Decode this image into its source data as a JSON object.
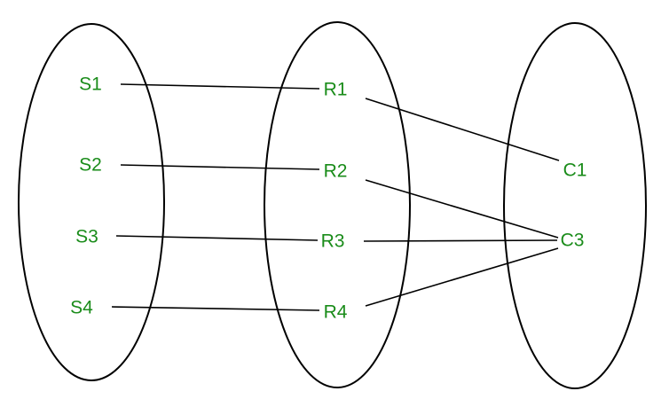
{
  "colors": {
    "label": "#1a8c1a",
    "stroke": "#000000",
    "background": "#ffffff"
  },
  "sets": [
    {
      "id": "left",
      "nodes": [
        "S1",
        "S2",
        "S3",
        "S4"
      ]
    },
    {
      "id": "middle",
      "nodes": [
        "R1",
        "R2",
        "R3",
        "R4"
      ]
    },
    {
      "id": "right",
      "nodes": [
        "C1",
        "C3"
      ]
    }
  ],
  "edges": [
    {
      "from": "S1",
      "to": "R1"
    },
    {
      "from": "S2",
      "to": "R2"
    },
    {
      "from": "S3",
      "to": "R3"
    },
    {
      "from": "S4",
      "to": "R4"
    },
    {
      "from": "R1",
      "to": "C1"
    },
    {
      "from": "R2",
      "to": "C3"
    },
    {
      "from": "R3",
      "to": "C3"
    },
    {
      "from": "R4",
      "to": "C3"
    }
  ]
}
